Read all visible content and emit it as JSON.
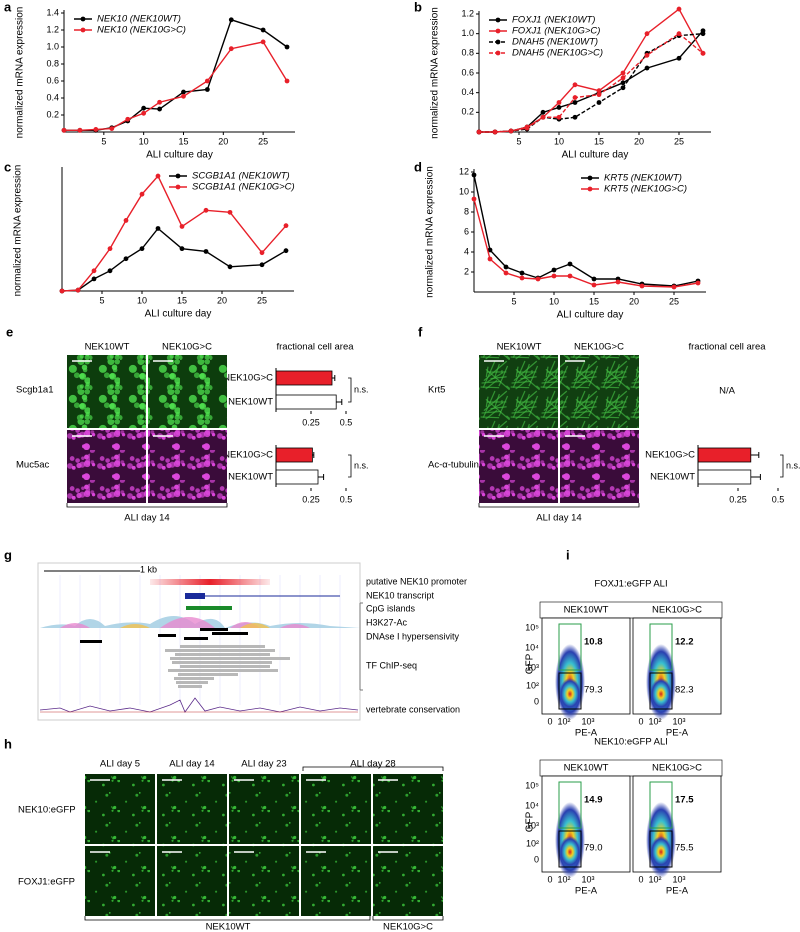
{
  "chart_data": [
    {
      "type": "line",
      "label": "a",
      "xlabel": "ALI culture day",
      "ylabel": "normalized mRNA expression",
      "x": [
        0,
        2,
        4,
        6,
        8,
        10,
        12,
        15,
        18,
        21,
        25,
        28
      ],
      "series": [
        {
          "name": "NEK10 (NEK10WT)",
          "color": "#000000",
          "linestyle": "solid",
          "values": [
            0.02,
            0.02,
            0.02,
            0.05,
            0.13,
            0.28,
            0.27,
            0.47,
            0.5,
            1.32,
            1.2,
            1.0
          ]
        },
        {
          "name": "NEK10 (NEK10G>C)",
          "color": "#e8202a",
          "linestyle": "solid",
          "values": [
            0.02,
            0.02,
            0.03,
            0.04,
            0.15,
            0.22,
            0.35,
            0.42,
            0.6,
            0.98,
            1.06,
            0.6
          ]
        }
      ],
      "xlim": [
        0,
        29
      ],
      "xticks": [
        5,
        10,
        15,
        20,
        25
      ],
      "ylim": [
        0,
        1.4
      ],
      "yticks": [
        0.2,
        0.4,
        0.6,
        0.8,
        {
          "value": 1,
          "label": "1.0"
        },
        1.2,
        1.4
      ],
      "legend": "upper left"
    },
    {
      "type": "line",
      "label": "b",
      "xlabel": "ALI culture day",
      "ylabel": "normalized mRNA expression",
      "x": [
        0,
        2,
        4,
        6,
        8,
        10,
        12,
        15,
        18,
        21,
        25,
        28
      ],
      "series": [
        {
          "name": "FOXJ1 (NEK10WT)",
          "color": "#000000",
          "linestyle": "solid",
          "values": [
            0,
            0,
            0.01,
            0.05,
            0.2,
            0.25,
            0.3,
            0.4,
            0.5,
            0.65,
            0.75,
            1.03
          ]
        },
        {
          "name": "FOXJ1 (NEK10G>C)",
          "color": "#e8202a",
          "linestyle": "solid",
          "values": [
            0,
            0,
            0.01,
            0.05,
            0.15,
            0.3,
            0.48,
            0.42,
            0.6,
            1.0,
            1.25,
            0.8
          ]
        },
        {
          "name": "DNAH5 (NEK10WT)",
          "color": "#000000",
          "linestyle": "dashed",
          "values": [
            0,
            0,
            0.01,
            0.03,
            0.15,
            0.13,
            0.15,
            0.3,
            0.45,
            0.8,
            0.98,
            1.0
          ]
        },
        {
          "name": "DNAH5 (NEK10G>C)",
          "color": "#e8202a",
          "linestyle": "dashed",
          "values": [
            0,
            0,
            0.01,
            0.04,
            0.15,
            0.15,
            0.35,
            0.38,
            0.55,
            0.78,
            1.0,
            0.8
          ]
        }
      ],
      "xlim": [
        0,
        29
      ],
      "xticks": [
        5,
        10,
        15,
        20,
        25
      ],
      "ylim": [
        0,
        1.2
      ],
      "yticks": [
        0.2,
        0.4,
        0.6,
        0.8,
        {
          "value": 1,
          "label": "1.0"
        },
        1.2
      ],
      "legend": "upper left"
    },
    {
      "type": "line",
      "label": "c",
      "xlabel": "ALI culture day",
      "ylabel": "normalized mRNA expression",
      "x": [
        0,
        2,
        4,
        6,
        8,
        10,
        12,
        15,
        18,
        21,
        25,
        28
      ],
      "series": [
        {
          "name": "SCGB1A1 (NEK10WT)",
          "color": "#000000",
          "linestyle": "solid",
          "values": [
            0,
            0.02,
            0.3,
            0.5,
            0.8,
            1.05,
            1.55,
            1.05,
            0.98,
            0.6,
            0.65,
            1.0
          ]
        },
        {
          "name": "SCGB1A1 (NEK10G>C)",
          "color": "#e8202a",
          "linestyle": "solid",
          "values": [
            0,
            0.02,
            0.5,
            1.05,
            1.75,
            2.4,
            2.85,
            1.6,
            2.0,
            1.95,
            0.95,
            1.62
          ]
        }
      ],
      "xlim": [
        0,
        29
      ],
      "xticks": [
        5,
        10,
        15,
        20,
        25
      ],
      "ylim": [
        0,
        3
      ],
      "legend": "upper right"
    },
    {
      "type": "line",
      "label": "d",
      "xlabel": "ALI culture day",
      "ylabel": "normalized mRNA expression",
      "x": [
        0,
        2,
        4,
        6,
        8,
        10,
        12,
        15,
        18,
        21,
        25,
        28
      ],
      "series": [
        {
          "name": "KRT5 (NEK10WT)",
          "color": "#000000",
          "linestyle": "solid",
          "values": [
            11.7,
            4.2,
            2.5,
            1.9,
            1.4,
            2.2,
            2.8,
            1.3,
            1.3,
            0.8,
            0.6,
            1.1
          ]
        },
        {
          "name": "KRT5 (NEK10G>C)",
          "color": "#e8202a",
          "linestyle": "solid",
          "values": [
            9.3,
            3.3,
            1.9,
            1.4,
            1.3,
            1.6,
            1.6,
            0.7,
            1.0,
            0.6,
            0.5,
            0.9
          ]
        }
      ],
      "xlim": [
        0,
        29
      ],
      "xticks": [
        5,
        10,
        15,
        20,
        25
      ],
      "ylim": [
        0,
        12
      ],
      "yticks": [
        2,
        4,
        6,
        8,
        10,
        12
      ],
      "legend": "upper right"
    },
    {
      "type": "barh",
      "categories": [
        "NEK10G>C",
        "NEK10WT"
      ],
      "values": [
        0.4,
        0.43
      ],
      "errors": [
        0.02,
        0.04
      ],
      "colors": [
        "#e8202a",
        "#ffffff"
      ],
      "xlim": [
        0,
        0.5
      ],
      "xticks": [
        0.25,
        0.5
      ],
      "annotation": "n.s."
    },
    {
      "type": "barh",
      "categories": [
        "NEK10G>C",
        "NEK10WT"
      ],
      "values": [
        0.26,
        0.3
      ],
      "errors": [
        0.01,
        0.04
      ],
      "colors": [
        "#e8202a",
        "#ffffff"
      ],
      "xlim": [
        0,
        0.5
      ],
      "xticks": [
        0.25,
        0.5
      ],
      "annotation": "n.s."
    },
    {
      "type": "barh",
      "categories": [
        "NEK10G>C",
        "NEK10WT"
      ],
      "values": [
        0.33,
        0.33
      ],
      "errors": [
        0.05,
        0.06
      ],
      "colors": [
        "#e8202a",
        "#ffffff"
      ],
      "xlim": [
        0,
        0.5
      ],
      "xticks": [
        0.25,
        0.5
      ],
      "annotation": "n.s."
    }
  ],
  "figure": {
    "e": {
      "label": "e",
      "columns": [
        "NEK10WT",
        "NEK10G>C"
      ],
      "rows": [
        "Scgb1a1",
        "Muc5ac"
      ],
      "title": "fractional cell area",
      "footer": "ALI day 14"
    },
    "f": {
      "label": "f",
      "columns": [
        "NEK10WT",
        "NEK10G>C"
      ],
      "rows": [
        "Krt5",
        "Ac-α-tubulin"
      ],
      "title": "fractional cell area",
      "na": "N/A",
      "footer": "ALI day 14"
    },
    "g": {
      "label": "g",
      "scale": "1 kb",
      "tracks": [
        "putative NEK10 promoter",
        "NEK10 transcript",
        "CpG islands",
        "H3K27-Ac",
        "DNAse I hypersensivity",
        "TF ChIP-seq",
        "vertebrate conservation"
      ]
    },
    "h": {
      "label": "h",
      "columns": [
        "ALI day 5",
        "ALI day 14",
        "ALI day 23",
        "ALI day 28"
      ],
      "rows": [
        "NEK10:eGFP",
        "FOXJ1:eGFP"
      ],
      "groups": [
        "NEK10WT",
        "NEK10G>C"
      ]
    },
    "i": {
      "label": "i",
      "ylabel": "GFP",
      "xlabel": "PE-A",
      "yticks": [
        "10⁵",
        "10⁴",
        "10³",
        "10²",
        "0"
      ],
      "xticks": [
        "0",
        "10²",
        "10³"
      ],
      "plots": [
        {
          "title": "FOXJ1:eGFP ALI",
          "columns": [
            "NEK10WT",
            "NEK10G>C"
          ],
          "gates": [
            [
              "10.8",
              "79.3"
            ],
            [
              "12.2",
              "82.3"
            ]
          ]
        },
        {
          "title": "NEK10:eGFP ALI",
          "columns": [
            "NEK10WT",
            "NEK10G>C"
          ],
          "gates": [
            [
              "14.9",
              "79.0"
            ],
            [
              "17.5",
              "75.5"
            ]
          ]
        }
      ]
    }
  }
}
